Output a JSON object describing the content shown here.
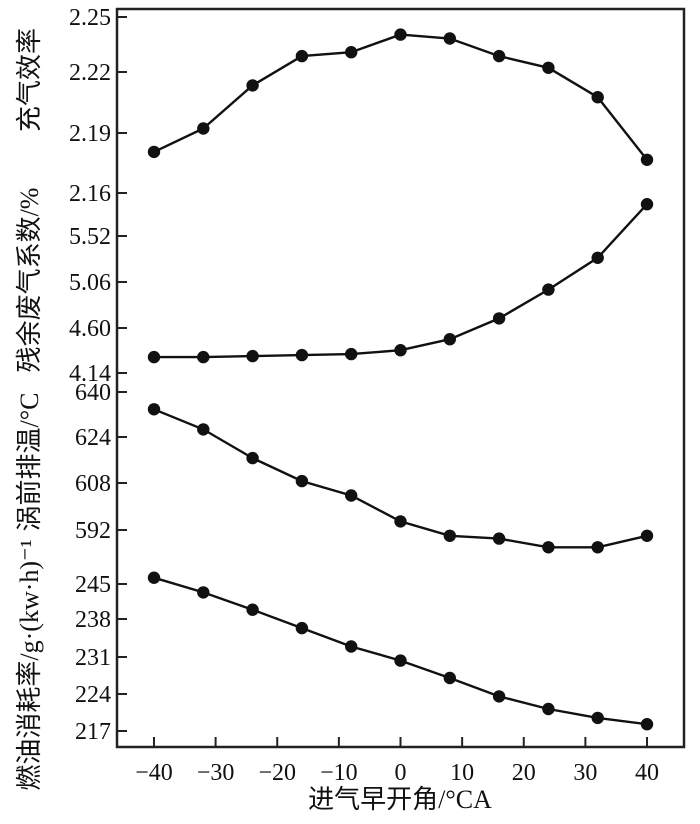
{
  "chart_data": {
    "type": "line",
    "xlabel": "进气早开角/°CA",
    "x": [
      -40,
      -32,
      -24,
      -16,
      -8,
      0,
      8,
      16,
      24,
      32,
      40
    ],
    "x_ticks": [
      -40,
      -30,
      -20,
      -10,
      0,
      10,
      20,
      30,
      40
    ],
    "xlim": [
      -46,
      46
    ],
    "grid": false,
    "legend": "none",
    "panels": [
      {
        "ylabel": "充气效率",
        "ticks": [
          "2.25",
          "2.22",
          "2.19",
          "2.16"
        ],
        "ylim": [
          2.16,
          2.25
        ],
        "values": [
          2.181,
          2.193,
          2.215,
          2.23,
          2.232,
          2.241,
          2.239,
          2.23,
          2.224,
          2.209,
          2.177
        ]
      },
      {
        "ylabel": "残余废气系数/%",
        "ticks": [
          "5.52",
          "5.06",
          "4.60",
          "4.14"
        ],
        "ylim": [
          4.12,
          5.72
        ],
        "values": [
          4.3,
          4.3,
          4.31,
          4.32,
          4.33,
          4.37,
          4.48,
          4.69,
          4.98,
          5.3,
          5.84
        ]
      },
      {
        "ylabel": "涡前排温/°C",
        "ticks": [
          "640",
          "624",
          "608",
          "592"
        ],
        "ylim": [
          584,
          642
        ],
        "values": [
          634,
          627,
          617,
          609,
          604,
          595,
          590,
          589,
          586,
          586,
          590
        ]
      },
      {
        "ylabel": "燃油消耗率/g·(kw·h)⁻¹",
        "ticks": [
          "245",
          "238",
          "231",
          "224",
          "217"
        ],
        "ylim": [
          216,
          249
        ],
        "values": [
          246.2,
          243.4,
          240.1,
          236.6,
          233.1,
          230.4,
          227.1,
          223.6,
          221.2,
          219.5,
          218.3
        ]
      }
    ]
  }
}
